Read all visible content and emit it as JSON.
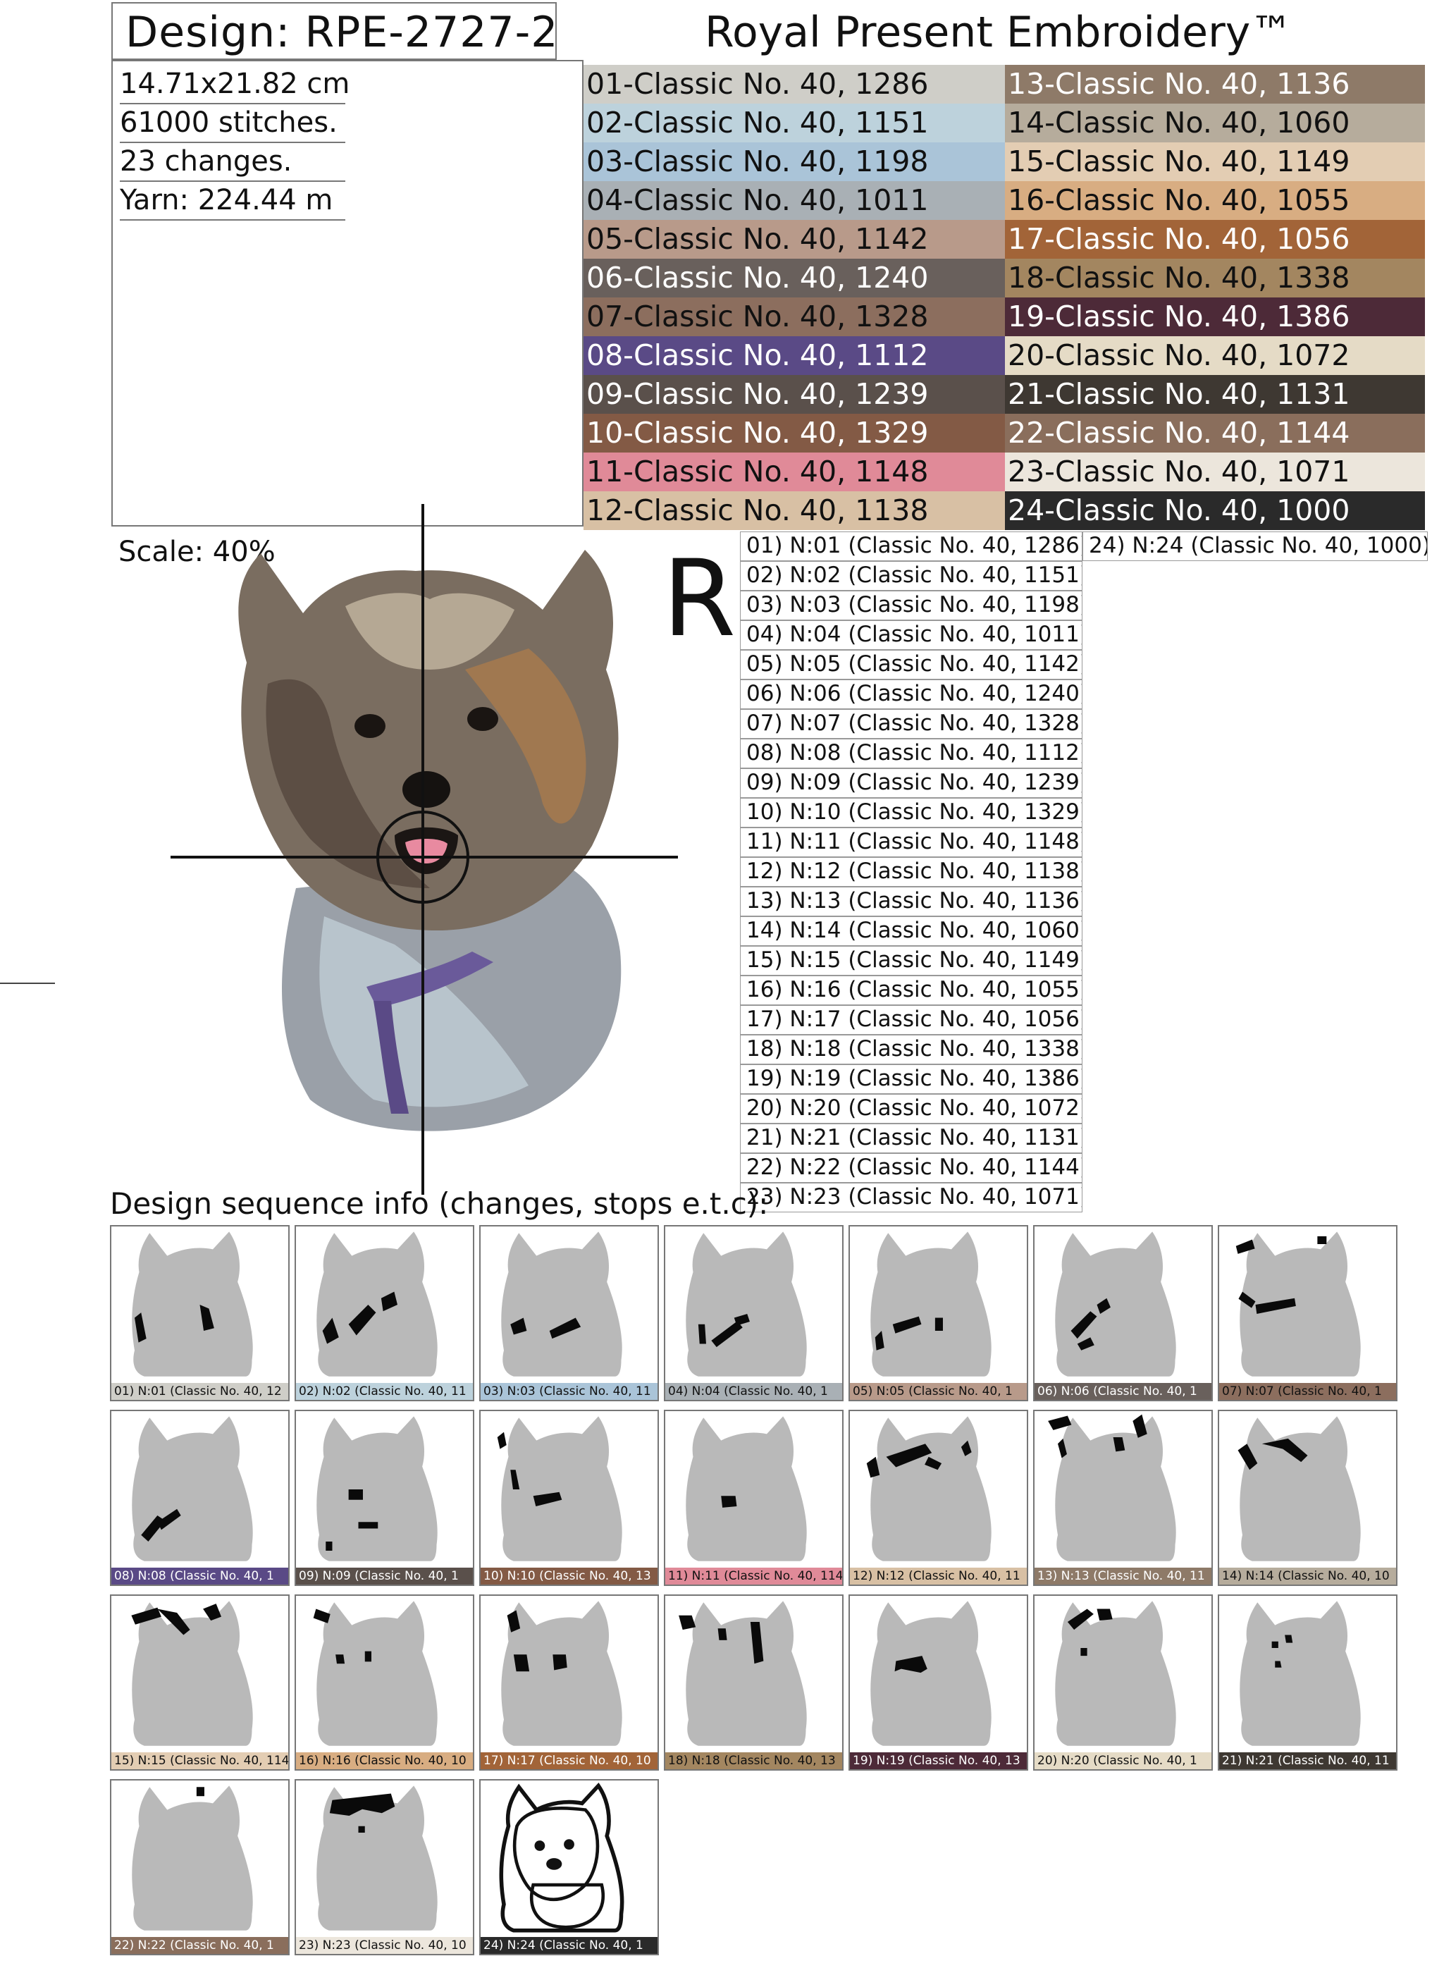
{
  "header": {
    "design_label": "Design: RPE-2727-2",
    "brand": "Royal Present Embroidery™"
  },
  "info": {
    "size": "14.71x21.82 cm",
    "stitches": "61000 stitches.",
    "changes": "23 changes.",
    "yarn": "Yarn: 224.44 m"
  },
  "palette": [
    {
      "label": "01-Classic No. 40, 1286",
      "color": "#cfcec8",
      "text": "#111111"
    },
    {
      "label": "02-Classic No. 40, 1151",
      "color": "#bdd2dc",
      "text": "#111111"
    },
    {
      "label": "03-Classic No. 40, 1198",
      "color": "#aac4d8",
      "text": "#111111"
    },
    {
      "label": "04-Classic No. 40, 1011",
      "color": "#a9b0b5",
      "text": "#111111"
    },
    {
      "label": "05-Classic No. 40, 1142",
      "color": "#b89a8a",
      "text": "#111111"
    },
    {
      "label": "06-Classic No. 40, 1240",
      "color": "#69605c",
      "text": "#ffffff"
    },
    {
      "label": "07-Classic No. 40, 1328",
      "color": "#8c6e5e",
      "text": "#111111"
    },
    {
      "label": "08-Classic No. 40, 1112",
      "color": "#5a4a86",
      "text": "#ffffff"
    },
    {
      "label": "09-Classic No. 40, 1239",
      "color": "#5a504b",
      "text": "#ffffff"
    },
    {
      "label": "10-Classic No. 40, 1329",
      "color": "#835a45",
      "text": "#ffffff"
    },
    {
      "label": "11-Classic No. 40, 1148",
      "color": "#e08a98",
      "text": "#111111"
    },
    {
      "label": "12-Classic No. 40, 1138",
      "color": "#d8c0a4",
      "text": "#111111"
    },
    {
      "label": "13-Classic No. 40, 1136",
      "color": "#8e7a68",
      "text": "#ffffff"
    },
    {
      "label": "14-Classic No. 40, 1060",
      "color": "#b6ac9c",
      "text": "#111111"
    },
    {
      "label": "15-Classic No. 40, 1149",
      "color": "#e3cdb3",
      "text": "#111111"
    },
    {
      "label": "16-Classic No. 40, 1055",
      "color": "#d8ad82",
      "text": "#111111"
    },
    {
      "label": "17-Classic No. 40, 1056",
      "color": "#a26438",
      "text": "#ffffff"
    },
    {
      "label": "18-Classic No. 40, 1338",
      "color": "#a38660",
      "text": "#111111"
    },
    {
      "label": "19-Classic No. 40, 1386",
      "color": "#4d2a38",
      "text": "#ffffff"
    },
    {
      "label": "20-Classic No. 40, 1072",
      "color": "#e5dbc6",
      "text": "#111111"
    },
    {
      "label": "21-Classic No. 40, 1131",
      "color": "#3e3832",
      "text": "#ffffff"
    },
    {
      "label": "22-Classic No. 40, 1144",
      "color": "#8a6e5c",
      "text": "#ffffff"
    },
    {
      "label": "23-Classic No. 40, 1071",
      "color": "#ece6dc",
      "text": "#111111"
    },
    {
      "label": "24-Classic No. 40, 1000",
      "color": "#2a2a2a",
      "text": "#ffffff"
    }
  ],
  "preview": {
    "scale": "Scale: 40%",
    "rotation_mark": "R"
  },
  "sequence_list": [
    "01) N:01 (Classic No. 40, 1286)",
    "02) N:02 (Classic No. 40, 1151)",
    "03) N:03 (Classic No. 40, 1198)",
    "04) N:04 (Classic No. 40, 1011)",
    "05) N:05 (Classic No. 40, 1142)",
    "06) N:06 (Classic No. 40, 1240)",
    "07) N:07 (Classic No. 40, 1328)",
    "08) N:08 (Classic No. 40, 1112)",
    "09) N:09 (Classic No. 40, 1239)",
    "10) N:10 (Classic No. 40, 1329)",
    "11) N:11 (Classic No. 40, 1148)",
    "12) N:12 (Classic No. 40, 1138)",
    "13) N:13 (Classic No. 40, 1136)",
    "14) N:14 (Classic No. 40, 1060)",
    "15) N:15 (Classic No. 40, 1149)",
    "16) N:16 (Classic No. 40, 1055)",
    "17) N:17 (Classic No. 40, 1056)",
    "18) N:18 (Classic No. 40, 1338)",
    "19) N:19 (Classic No. 40, 1386)",
    "20) N:20 (Classic No. 40, 1072)",
    "21) N:21 (Classic No. 40, 1131)",
    "22) N:22 (Classic No. 40, 1144)",
    "23) N:23 (Classic No. 40, 1071)",
    "24) N:24 (Classic No. 40, 1000)"
  ],
  "sequence_title": "Design sequence info (changes, stops e.t.c):",
  "tiles": [
    "01) N:01 (Classic No. 40, 12",
    "02) N:02 (Classic No. 40, 11",
    "03) N:03 (Classic No. 40, 11",
    "04) N:04 (Classic No. 40, 1",
    "05) N:05 (Classic No. 40, 1",
    "06) N:06 (Classic No. 40, 1",
    "07) N:07 (Classic No. 40, 1",
    "08) N:08 (Classic No. 40, 1",
    "09) N:09 (Classic No. 40, 1",
    "10) N:10 (Classic No. 40, 13",
    "11) N:11 (Classic No. 40, 114",
    "12) N:12 (Classic No. 40, 11",
    "13) N:13 (Classic No. 40, 11",
    "14) N:14 (Classic No. 40, 10",
    "15) N:15 (Classic No. 40, 114",
    "16) N:16 (Classic No. 40, 10",
    "17) N:17 (Classic No. 40, 10",
    "18) N:18 (Classic No. 40, 13",
    "19) N:19 (Classic No. 40, 13",
    "20) N:20 (Classic No. 40, 1",
    "21) N:21 (Classic No. 40, 11",
    "22) N:22 (Classic No. 40, 1",
    "23) N:23 (Classic No. 40, 10",
    "24) N:24 (Classic No. 40, 1"
  ]
}
